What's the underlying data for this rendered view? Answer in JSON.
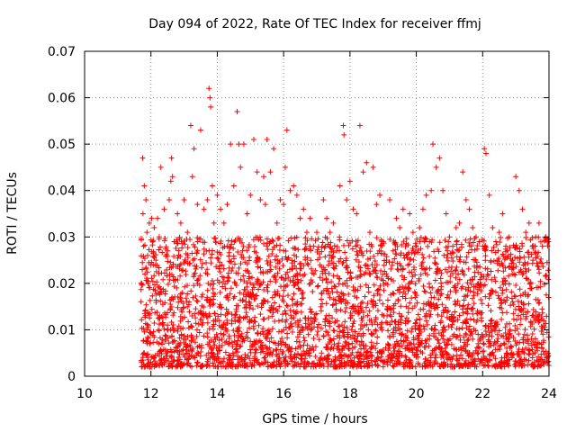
{
  "chart_data": {
    "type": "scatter",
    "title": "Day 094 of 2022, Rate Of TEC Index for receiver ffmj",
    "xlabel": "GPS time / hours",
    "ylabel": "ROTI / TECUs",
    "xlim": [
      10,
      24
    ],
    "ylim": [
      0,
      0.07
    ],
    "xticks": [
      "10",
      "12",
      "14",
      "16",
      "18",
      "20",
      "22",
      "24"
    ],
    "yticks": [
      "0",
      "0.01",
      "0.02",
      "0.03",
      "0.04",
      "0.05",
      "0.06",
      "0.07"
    ],
    "grid": true,
    "marker": "+",
    "series_color": "#ff0000",
    "series": [
      {
        "name": "ROTI",
        "x": [
          11.75,
          11.76,
          11.78,
          11.8,
          11.82,
          11.85,
          11.88,
          11.9,
          11.95,
          12.0,
          12.02,
          12.05,
          12.1,
          12.15,
          12.2,
          12.25,
          12.3,
          12.4,
          12.5,
          12.55,
          12.6,
          12.62,
          12.65,
          12.7,
          12.8,
          12.9,
          13.0,
          13.1,
          13.2,
          13.25,
          13.3,
          13.4,
          13.5,
          13.6,
          13.7,
          13.75,
          13.78,
          13.8,
          13.85,
          13.9,
          14.0,
          14.1,
          14.2,
          14.3,
          14.4,
          14.5,
          14.6,
          14.65,
          14.7,
          14.8,
          14.9,
          15.0,
          15.1,
          15.2,
          15.3,
          15.4,
          15.45,
          15.5,
          15.6,
          15.7,
          15.8,
          15.9,
          16.0,
          16.05,
          16.1,
          16.2,
          16.3,
          16.4,
          16.5,
          16.6,
          16.7,
          16.8,
          16.9,
          17.0,
          17.1,
          17.2,
          17.3,
          17.4,
          17.5,
          17.6,
          17.7,
          17.8,
          17.82,
          17.9,
          18.0,
          18.1,
          18.2,
          18.3,
          18.4,
          18.5,
          18.6,
          18.7,
          18.8,
          18.9,
          19.0,
          19.1,
          19.2,
          19.3,
          19.4,
          19.5,
          19.6,
          19.7,
          19.8,
          19.9,
          20.0,
          20.1,
          20.2,
          20.3,
          20.4,
          20.45,
          20.5,
          20.6,
          20.7,
          20.8,
          20.9,
          21.0,
          21.1,
          21.2,
          21.3,
          21.4,
          21.5,
          21.6,
          21.7,
          21.8,
          21.9,
          22.0,
          22.05,
          22.1,
          22.2,
          22.3,
          22.4,
          22.5,
          22.6,
          22.7,
          22.8,
          22.9,
          23.0,
          23.1,
          23.2,
          23.3,
          23.4,
          23.5,
          23.6,
          23.7,
          23.8,
          23.9,
          23.98
        ],
        "y": [
          0.047,
          0.035,
          0.028,
          0.041,
          0.022,
          0.038,
          0.031,
          0.026,
          0.033,
          0.024,
          0.034,
          0.029,
          0.032,
          0.025,
          0.034,
          0.03,
          0.045,
          0.036,
          0.027,
          0.038,
          0.042,
          0.047,
          0.043,
          0.029,
          0.035,
          0.033,
          0.038,
          0.031,
          0.054,
          0.043,
          0.049,
          0.037,
          0.053,
          0.036,
          0.038,
          0.062,
          0.06,
          0.058,
          0.041,
          0.033,
          0.039,
          0.036,
          0.033,
          0.037,
          0.05,
          0.041,
          0.057,
          0.05,
          0.045,
          0.05,
          0.035,
          0.039,
          0.051,
          0.044,
          0.038,
          0.043,
          0.037,
          0.051,
          0.044,
          0.049,
          0.033,
          0.038,
          0.037,
          0.045,
          0.053,
          0.04,
          0.041,
          0.039,
          0.034,
          0.036,
          0.031,
          0.034,
          0.028,
          0.031,
          0.024,
          0.038,
          0.034,
          0.031,
          0.033,
          0.027,
          0.041,
          0.054,
          0.052,
          0.038,
          0.042,
          0.036,
          0.035,
          0.054,
          0.044,
          0.046,
          0.031,
          0.045,
          0.037,
          0.039,
          0.029,
          0.025,
          0.038,
          0.027,
          0.034,
          0.032,
          0.036,
          0.026,
          0.035,
          0.031,
          0.028,
          0.032,
          0.036,
          0.039,
          0.029,
          0.04,
          0.05,
          0.045,
          0.047,
          0.04,
          0.035,
          0.03,
          0.028,
          0.032,
          0.033,
          0.044,
          0.038,
          0.036,
          0.032,
          0.03,
          0.029,
          0.028,
          0.049,
          0.048,
          0.039,
          0.032,
          0.029,
          0.031,
          0.035,
          0.028,
          0.03,
          0.025,
          0.043,
          0.04,
          0.036,
          0.031,
          0.033,
          0.028,
          0.03,
          0.033,
          0.028,
          0.03,
          0.029
        ],
        "density_note": "dense band of points between 0.002 and 0.03 from 11.7 to 24 hours"
      }
    ],
    "dense_band": {
      "x_start": 11.7,
      "x_end": 24.0,
      "y_min": 0.002,
      "y_max": 0.03,
      "count": 3200
    }
  }
}
